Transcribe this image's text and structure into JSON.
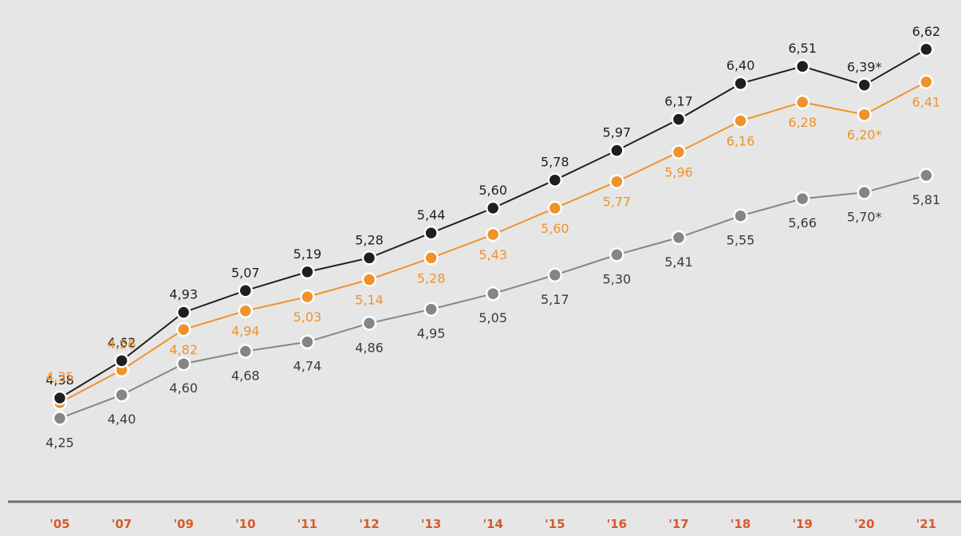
{
  "chart_data": {
    "type": "line",
    "title": "",
    "xlabel": "",
    "ylabel": "",
    "grid": false,
    "ylim": [
      4.0,
      6.8
    ],
    "categories": [
      "'05",
      "'07",
      "'09",
      "'10",
      "'11",
      "'12",
      "'13",
      "'14",
      "'15",
      "'16",
      "'17",
      "'18",
      "'19",
      "'20",
      "'21"
    ],
    "series": [
      {
        "color": "#1f1f1f",
        "values": [
          4.38,
          4.62,
          4.93,
          5.07,
          5.19,
          5.28,
          5.44,
          5.6,
          5.78,
          5.97,
          6.17,
          6.4,
          6.51,
          6.39,
          6.62
        ],
        "labels": [
          "4,38",
          "4,62",
          "4,93",
          "5,07",
          "5,19",
          "5,28",
          "5,44",
          "5,60",
          "5,78",
          "5,97",
          "6,17",
          "6,40",
          "6,51",
          "6,39*",
          "6,62"
        ]
      },
      {
        "color": "#f0922a",
        "values": [
          4.35,
          4.56,
          4.82,
          4.94,
          5.03,
          5.14,
          5.28,
          5.43,
          5.6,
          5.77,
          5.96,
          6.16,
          6.28,
          6.2,
          6.41
        ],
        "labels": [
          "4,35",
          "4,56",
          "4,82",
          "4,94",
          "5,03",
          "5,14",
          "5,28",
          "5,43",
          "5,60",
          "5,77",
          "5,96",
          "6,16",
          "6,28",
          "6,20*",
          "6,41"
        ]
      },
      {
        "color": "#858585",
        "values": [
          4.25,
          4.4,
          4.6,
          4.68,
          4.74,
          4.86,
          4.95,
          5.05,
          5.17,
          5.3,
          5.41,
          5.55,
          5.66,
          5.7,
          5.81
        ],
        "labels": [
          "4,25",
          "4,40",
          "4,60",
          "4,68",
          "4,74",
          "4,86",
          "4,95",
          "5,05",
          "5,17",
          "5,30",
          "5,41",
          "5,55",
          "5,66",
          "5,70*",
          "5,81"
        ]
      }
    ],
    "tick_color": "#d85a2a",
    "axis_color": "#6e6e6e",
    "background": "#e6e6e6"
  }
}
